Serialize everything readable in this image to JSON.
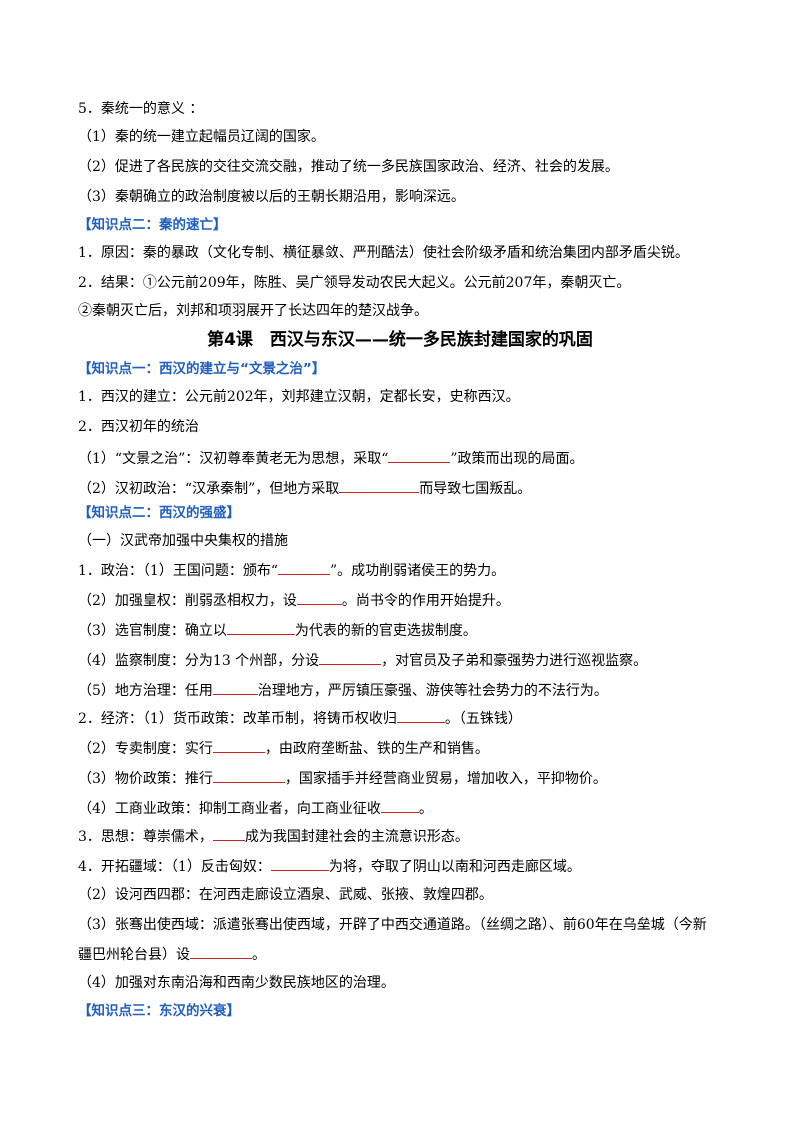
{
  "lines": [
    [
      "5．秦统一的意义 ："
    ],
    [
      "（1）秦的统一建立起幅员辽阔的国家。"
    ],
    [
      "（2）促进了各民族的交往交流交融，推动了统一多民族国家政治、经济、社会的发展。"
    ],
    [
      "（3）秦朝确立的政治制度被以后的王朝长期沿用，影响深远。"
    ],
    [
      "【知识点二：秦的速亡】"
    ],
    [
      "1．原因：秦的暴政（文化专制、横征暴敛、严刑酷法）使社会阶级矛盾和统治集团内部矛盾尖锐。"
    ],
    [
      "2．结果：①公元前209年，陈胜、吴广领导发动农民大起义。公元前207年，秦朝灭亡。"
    ],
    [
      "②秦朝灭亡后，刘邦和项羽展开了长达四年的楚汉战争。"
    ],
    [
      "第4课　西汉与东汉——统一多民族封建国家的巩固"
    ],
    [
      "【知识点一：西汉的建立与“文景之治”】"
    ],
    [
      "1．西汉的建立：公元前202年，刘邦建立汉朝，定都长安，史称西汉。"
    ],
    [
      "2．西汉初年的统治"
    ],
    [
      "（1）“文景之治”：汉初尊奉黄老无为思想，采取“",
      "”政策而出现的局面。"
    ],
    [
      "（2）汉初政治：“汉承秦制”，但地方采取",
      "而导致七国叛乱。"
    ],
    [
      "【知识点二：西汉的强盛】"
    ],
    [
      "（一）汉武帝加强中央集权的措施"
    ],
    [
      "1．政治：（1）王国问题：颁布“",
      "”。成功削弱诸侯王的势力。"
    ],
    [
      "（2）加强皇权：削弱丞相权力，设",
      "。尚书令的作用开始提升。"
    ],
    [
      "（3）选官制度：确立以",
      "为代表的新的官吏选拔制度。"
    ],
    [
      "（4）监察制度：分为13 个州部，分设",
      "，对官员及子弟和豪强势力进行巡视监察。"
    ],
    [
      "（5）地方治理：任用",
      "治理地方，严厉镇压豪强、游侠等社会势力的不法行为。"
    ],
    [
      "2．经济：（1）货币政策：改革币制，将铸币权收归",
      "。（五铢钱）"
    ],
    [
      "（2）专卖制度：实行",
      "，由政府垄断盐、铁的生产和销售。"
    ],
    [
      "（3）物价政策：推行",
      "，国家插手并经营商业贸易，增加收入，平抑物价。"
    ],
    [
      "（4）工商业政策：抑制工商业者，向工商业征收",
      "。"
    ],
    [
      "3．思想：尊崇儒术，",
      "成为我国封建社会的主流意识形态。"
    ],
    [
      "4．开拓疆域：（1）反击匈奴：",
      "为将，夺取了阴山以南和河西走廊区域。"
    ],
    [
      "（2）设河西四郡：在河西走廊设立酒泉、武威、张掖、敦煌四郡。"
    ],
    [
      "（3）张骞出使西域：派遣张骞出使西域，开辟了中西交通道路。（丝绸之路）、前60年在乌垒城（今新"
    ],
    [
      "疆巴州轮台县）设",
      "。"
    ],
    [
      "（4）加强对东南沿海和西南少数民族地区的治理。"
    ],
    [
      "【知识点三：东汉的兴衰】"
    ]
  ]
}
